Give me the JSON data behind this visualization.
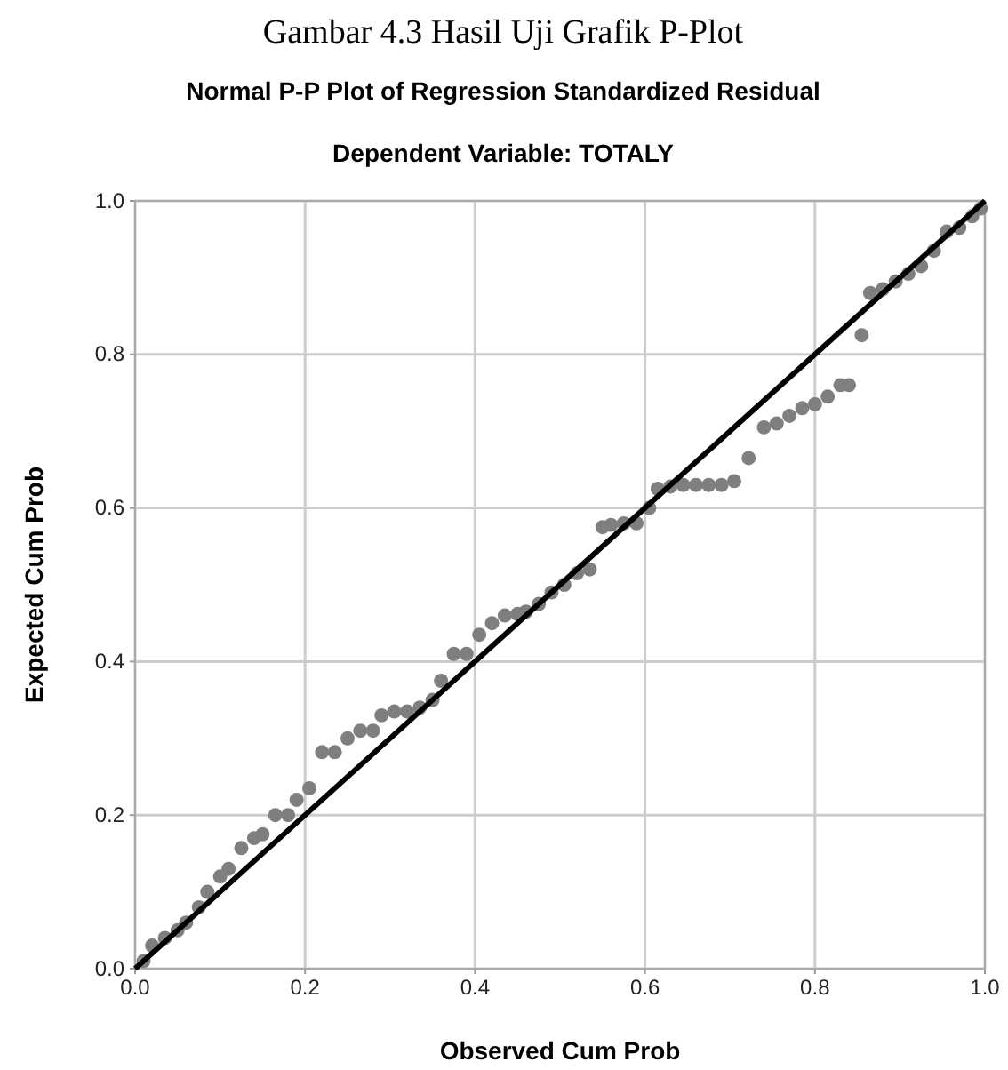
{
  "chart_data": {
    "type": "scatter",
    "title": "Normal P-P Plot of Regression Standardized Residual",
    "subtitle": "Dependent Variable: TOTALY",
    "xlabel": "Observed Cum Prob",
    "ylabel": "Expected Cum Prob",
    "annotations": [
      "Gambar 4.3 Hasil Uji Grafik P-Plot"
    ],
    "xlim": [
      0,
      1
    ],
    "ylim": [
      0,
      1
    ],
    "xticks": [
      {
        "value": 0,
        "label": "0.0"
      },
      {
        "value": 0.2,
        "label": "0.2"
      },
      {
        "value": 0.4,
        "label": "0.4"
      },
      {
        "value": 0.6,
        "label": "0.6"
      },
      {
        "value": 0.8,
        "label": "0.8"
      },
      {
        "value": 1,
        "label": "1.0"
      }
    ],
    "yticks": [
      {
        "value": 0,
        "label": "0.0"
      },
      {
        "value": 0.2,
        "label": "0.2"
      },
      {
        "value": 0.4,
        "label": "0.4"
      },
      {
        "value": 0.6,
        "label": "0.6"
      },
      {
        "value": 0.8,
        "label": "0.8"
      },
      {
        "value": 1,
        "label": "1.0"
      }
    ],
    "grid": true,
    "series": [
      {
        "marker": "circle",
        "color": "#7f7f7f",
        "x": [
          0.01,
          0.02,
          0.035,
          0.05,
          0.06,
          0.075,
          0.085,
          0.1,
          0.11,
          0.125,
          0.14,
          0.15,
          0.165,
          0.18,
          0.19,
          0.205,
          0.22,
          0.235,
          0.25,
          0.265,
          0.28,
          0.29,
          0.305,
          0.32,
          0.335,
          0.35,
          0.36,
          0.375,
          0.39,
          0.405,
          0.42,
          0.435,
          0.45,
          0.46,
          0.475,
          0.49,
          0.505,
          0.52,
          0.535,
          0.55,
          0.56,
          0.575,
          0.59,
          0.605,
          0.615,
          0.63,
          0.645,
          0.66,
          0.675,
          0.69,
          0.705,
          0.722,
          0.74,
          0.755,
          0.77,
          0.785,
          0.8,
          0.815,
          0.83,
          0.84,
          0.855,
          0.865,
          0.88,
          0.895,
          0.91,
          0.925,
          0.94,
          0.955,
          0.97,
          0.985,
          0.995
        ],
        "values": [
          0.01,
          0.03,
          0.04,
          0.05,
          0.06,
          0.08,
          0.1,
          0.12,
          0.13,
          0.157,
          0.17,
          0.175,
          0.2,
          0.2,
          0.22,
          0.235,
          0.282,
          0.282,
          0.3,
          0.31,
          0.31,
          0.33,
          0.335,
          0.335,
          0.34,
          0.35,
          0.375,
          0.41,
          0.41,
          0.435,
          0.45,
          0.46,
          0.462,
          0.465,
          0.475,
          0.49,
          0.5,
          0.515,
          0.52,
          0.575,
          0.578,
          0.58,
          0.58,
          0.6,
          0.625,
          0.628,
          0.63,
          0.63,
          0.63,
          0.63,
          0.635,
          0.665,
          0.705,
          0.71,
          0.72,
          0.73,
          0.735,
          0.745,
          0.76,
          0.76,
          0.825,
          0.88,
          0.885,
          0.895,
          0.905,
          0.915,
          0.935,
          0.96,
          0.965,
          0.98,
          0.99
        ]
      },
      {
        "type": "line",
        "color": "#000000",
        "x": [
          0,
          1
        ],
        "values": [
          0,
          1
        ]
      }
    ]
  }
}
